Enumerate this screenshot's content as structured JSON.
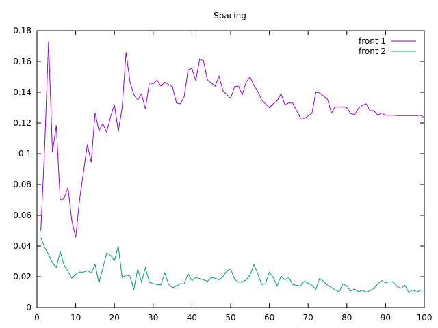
{
  "chart_data": {
    "type": "line",
    "title": "Spacing",
    "xlabel": "",
    "ylabel": "",
    "xlim": [
      0,
      100
    ],
    "ylim": [
      0,
      0.18
    ],
    "xticks": [
      0,
      10,
      20,
      30,
      40,
      50,
      60,
      70,
      80,
      90,
      100
    ],
    "yticks": [
      0,
      0.02,
      0.04,
      0.06,
      0.08,
      0.1,
      0.12,
      0.14,
      0.16,
      0.18
    ],
    "xtick_labels": [
      "0",
      "10",
      "20",
      "30",
      "40",
      "50",
      "60",
      "70",
      "80",
      "90",
      "100"
    ],
    "ytick_labels": [
      "0",
      "0.02",
      "0.04",
      "0.06",
      "0.08",
      "0.1",
      "0.12",
      "0.14",
      "0.16",
      "0.18"
    ],
    "grid": false,
    "legend_position": "top-right",
    "x": [
      1,
      2,
      3,
      4,
      5,
      6,
      7,
      8,
      9,
      10,
      11,
      12,
      13,
      14,
      15,
      16,
      17,
      18,
      19,
      20,
      21,
      22,
      23,
      24,
      25,
      26,
      27,
      28,
      29,
      30,
      31,
      32,
      33,
      34,
      35,
      36,
      37,
      38,
      39,
      40,
      41,
      42,
      43,
      44,
      45,
      46,
      47,
      48,
      49,
      50,
      51,
      52,
      53,
      54,
      55,
      56,
      57,
      58,
      59,
      60,
      61,
      62,
      63,
      64,
      65,
      66,
      67,
      68,
      69,
      70,
      71,
      72,
      73,
      74,
      75,
      76,
      77,
      78,
      79,
      80,
      81,
      82,
      83,
      84,
      85,
      86,
      87,
      88,
      89,
      90,
      91,
      92,
      93,
      94,
      95,
      96,
      97,
      98,
      99,
      100
    ],
    "series": [
      {
        "name": "front 1",
        "color": "#9400d3",
        "values": [
          0.05,
          0.105,
          0.173,
          0.101,
          0.1185,
          0.07,
          0.071,
          0.078,
          0.0565,
          0.0455,
          0.07,
          0.088,
          0.106,
          0.0945,
          0.1265,
          0.115,
          0.1195,
          0.114,
          0.124,
          0.132,
          0.1145,
          0.13,
          0.166,
          0.147,
          0.1385,
          0.135,
          0.139,
          0.129,
          0.146,
          0.1455,
          0.148,
          0.144,
          0.1465,
          0.145,
          0.1435,
          0.133,
          0.1325,
          0.137,
          0.1545,
          0.1555,
          0.1475,
          0.1615,
          0.1605,
          0.148,
          0.146,
          0.144,
          0.1505,
          0.141,
          0.1385,
          0.136,
          0.1435,
          0.144,
          0.1385,
          0.1465,
          0.15,
          0.1445,
          0.1405,
          0.135,
          0.1325,
          0.13,
          0.1325,
          0.1345,
          0.139,
          0.132,
          0.133,
          0.133,
          0.128,
          0.1235,
          0.123,
          0.1245,
          0.1265,
          0.14,
          0.1395,
          0.1375,
          0.1355,
          0.1265,
          0.1305,
          0.1305,
          0.1305,
          0.13,
          0.126,
          0.1255,
          0.1295,
          0.1315,
          0.1325,
          0.128,
          0.128,
          0.125,
          0.1265,
          0.125,
          0.125,
          0.125,
          0.1248,
          0.1248,
          0.1248,
          0.1248,
          0.1248,
          0.1248,
          0.125,
          0.1235
        ]
      },
      {
        "name": "front 2",
        "color": "#009e73",
        "values": [
          0.0455,
          0.039,
          0.0345,
          0.029,
          0.026,
          0.0365,
          0.0275,
          0.0235,
          0.019,
          0.0215,
          0.023,
          0.023,
          0.024,
          0.0225,
          0.028,
          0.016,
          0.0255,
          0.0355,
          0.034,
          0.0305,
          0.04,
          0.0195,
          0.021,
          0.0205,
          0.0115,
          0.025,
          0.0165,
          0.026,
          0.0165,
          0.0155,
          0.015,
          0.0148,
          0.0225,
          0.015,
          0.013,
          0.014,
          0.0155,
          0.0155,
          0.022,
          0.0175,
          0.0195,
          0.0188,
          0.018,
          0.017,
          0.0195,
          0.019,
          0.018,
          0.02,
          0.024,
          0.025,
          0.0185,
          0.0165,
          0.0165,
          0.018,
          0.021,
          0.028,
          0.022,
          0.015,
          0.0155,
          0.023,
          0.0195,
          0.014,
          0.0205,
          0.018,
          0.0195,
          0.015,
          0.0145,
          0.014,
          0.017,
          0.016,
          0.0145,
          0.0118,
          0.019,
          0.017,
          0.0145,
          0.013,
          0.0115,
          0.0102,
          0.0155,
          0.014,
          0.0108,
          0.012,
          0.0102,
          0.0112,
          0.01,
          0.011,
          0.0125,
          0.0155,
          0.0175,
          0.016,
          0.0168,
          0.0165,
          0.0135,
          0.0125,
          0.0145,
          0.0095,
          0.0115,
          0.01,
          0.0112,
          0.0115
        ]
      }
    ]
  }
}
